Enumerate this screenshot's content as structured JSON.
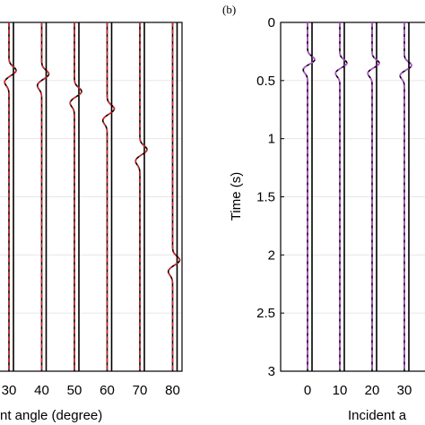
{
  "chart_data": [
    {
      "type": "line",
      "panel_label": "",
      "title": "",
      "xlabel": "nt angle (degree)",
      "ylabel": "",
      "x_tick_labels": [
        "30",
        "40",
        "50",
        "60",
        "70",
        "80"
      ],
      "y_tick_labels": [],
      "ylim": [
        0,
        3
      ],
      "y_reversed": true,
      "grid": "horizontal",
      "trace_center_color": "#d8232a",
      "trace_wiggle_color": "#000000",
      "x_axis": {
        "values": [
          30,
          40,
          50,
          60,
          70,
          80
        ]
      },
      "traces": [
        {
          "angle": 30,
          "arrival_time": 0.47
        },
        {
          "angle": 40,
          "arrival_time": 0.5
        },
        {
          "angle": 50,
          "arrival_time": 0.65
        },
        {
          "angle": 60,
          "arrival_time": 0.8
        },
        {
          "angle": 70,
          "arrival_time": 1.15
        },
        {
          "angle": 80,
          "arrival_time": 2.1
        }
      ]
    },
    {
      "type": "line",
      "panel_label": "(b)",
      "title": "",
      "xlabel": "Incident a",
      "ylabel": "Time (s)",
      "x_tick_labels": [
        "0",
        "10",
        "20",
        "30"
      ],
      "y_tick_labels": [
        "0",
        "0.5",
        "1",
        "1.5",
        "2",
        "2.5",
        "3"
      ],
      "ylim": [
        0,
        3
      ],
      "y_reversed": true,
      "grid": "horizontal",
      "trace_center_color": "#c34fe0",
      "trace_wiggle_color": "#000000",
      "x_axis": {
        "values": [
          0,
          10,
          20,
          30
        ]
      },
      "traces": [
        {
          "angle": 0,
          "arrival_time": 0.37
        },
        {
          "angle": 10,
          "arrival_time": 0.4
        },
        {
          "angle": 20,
          "arrival_time": 0.4
        },
        {
          "angle": 30,
          "arrival_time": 0.42
        }
      ]
    }
  ]
}
